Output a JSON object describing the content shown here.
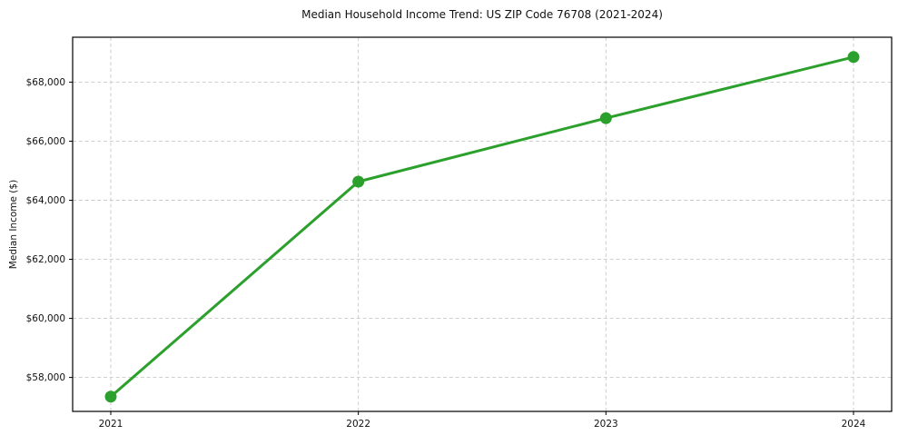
{
  "chart_data": {
    "type": "line",
    "title": "Median Household Income Trend: US ZIP Code 76708 (2021-2024)",
    "xlabel": "",
    "ylabel": "Median Income ($)",
    "x": [
      2021,
      2022,
      2023,
      2024
    ],
    "xtick_labels": [
      "2021",
      "2022",
      "2023",
      "2024"
    ],
    "series": [
      {
        "name": "Median Household Income",
        "values": [
          57350,
          64630,
          66780,
          68850
        ]
      }
    ],
    "yticks": [
      58000,
      60000,
      62000,
      64000,
      66000,
      68000
    ],
    "ytick_labels": [
      "$58,000",
      "$60,000",
      "$62,000",
      "$64,000",
      "$66,000",
      "$68,000"
    ],
    "ylim": [
      56850,
      69520
    ],
    "grid": true,
    "legend_position": "none",
    "line_color": "#2ca02c",
    "marker": "circle",
    "grid_color": "#c9c9c9",
    "background_color": "#ffffff",
    "text_color": "#111111"
  }
}
